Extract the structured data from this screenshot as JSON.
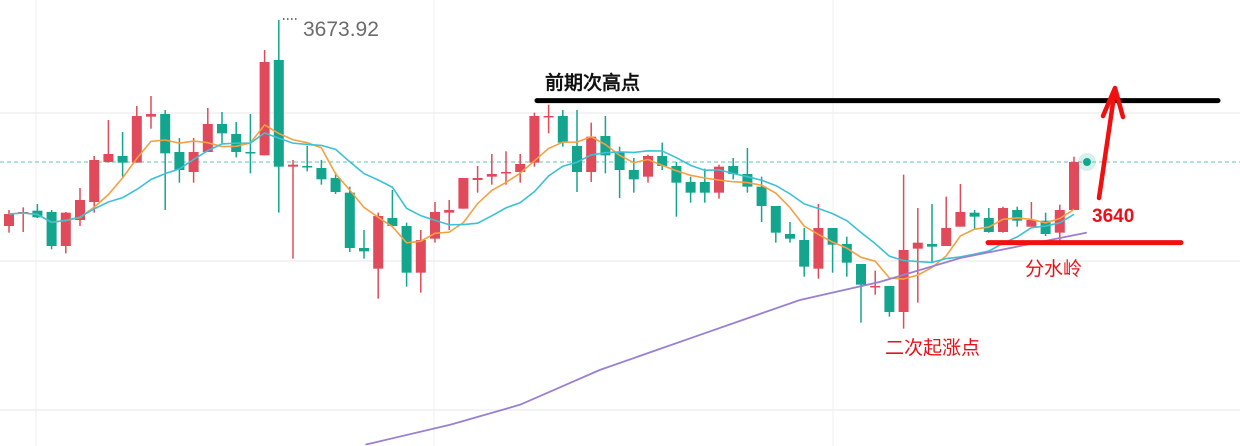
{
  "chart_data": {
    "type": "candlestick",
    "title": "",
    "xlabel": "",
    "ylabel": "",
    "ylim": [
      3610,
      3676.9
    ],
    "grid": true,
    "colors": {
      "up": "#e04a5a",
      "down": "#13a58e",
      "ma_short": "#f5a142",
      "ma_mid": "#3cc1d6",
      "ma_long": "#9b7fd4",
      "current_price_line": "#5cc7b4"
    },
    "ohlc": [
      [
        3643.0,
        3645.4,
        3642.0,
        3644.8
      ],
      [
        3645.0,
        3645.8,
        3642.1,
        3645.1
      ],
      [
        3645.3,
        3646.3,
        3644.2,
        3644.3
      ],
      [
        3645.1,
        3645.4,
        3639.5,
        3640.0
      ],
      [
        3640.0,
        3645.1,
        3638.9,
        3645.0
      ],
      [
        3643.9,
        3648.7,
        3643.0,
        3646.9
      ],
      [
        3646.6,
        3653.5,
        3645.0,
        3652.9
      ],
      [
        3652.6,
        3658.9,
        3652.5,
        3653.8
      ],
      [
        3653.5,
        3657.1,
        3650.4,
        3652.5
      ],
      [
        3652.5,
        3661.0,
        3652.5,
        3659.5
      ],
      [
        3659.4,
        3662.5,
        3657.6,
        3659.8
      ],
      [
        3659.8,
        3660.4,
        3645.4,
        3653.9
      ],
      [
        3654.1,
        3656.2,
        3649.5,
        3651.4
      ],
      [
        3651.1,
        3656.2,
        3649.5,
        3654.1
      ],
      [
        3654.1,
        3660.7,
        3654.1,
        3658.3
      ],
      [
        3658.3,
        3660.1,
        3655.4,
        3656.9
      ],
      [
        3656.8,
        3658.6,
        3653.3,
        3654.1
      ],
      [
        3654.1,
        3659.8,
        3650.9,
        3653.9
      ],
      [
        3653.6,
        3669.4,
        3653.6,
        3667.6
      ],
      [
        3667.9,
        3673.92,
        3645.0,
        3651.9
      ],
      [
        3651.9,
        3652.9,
        3638.1,
        3652.2
      ],
      [
        3652.0,
        3655.0,
        3651.2,
        3651.9
      ],
      [
        3651.7,
        3652.9,
        3649.2,
        3650.0
      ],
      [
        3650.2,
        3651.0,
        3647.8,
        3648.1
      ],
      [
        3648.0,
        3648.9,
        3639.1,
        3639.7
      ],
      [
        3639.7,
        3642.4,
        3638.1,
        3639.2
      ],
      [
        3636.6,
        3645.0,
        3632.1,
        3644.5
      ],
      [
        3644.2,
        3648.4,
        3642.9,
        3643.0
      ],
      [
        3643.0,
        3643.5,
        3633.9,
        3636.0
      ],
      [
        3636.0,
        3642.4,
        3633.0,
        3640.9
      ],
      [
        3641.1,
        3646.6,
        3640.5,
        3645.1
      ],
      [
        3645.0,
        3646.9,
        3642.4,
        3645.4
      ],
      [
        3645.6,
        3650.2,
        3645.6,
        3650.2
      ],
      [
        3649.9,
        3652.0,
        3648.0,
        3650.2
      ],
      [
        3650.4,
        3653.8,
        3649.2,
        3650.8
      ],
      [
        3651.0,
        3654.2,
        3649.2,
        3651.1
      ],
      [
        3651.1,
        3653.8,
        3649.5,
        3652.3
      ],
      [
        3652.5,
        3660.0,
        3651.9,
        3659.5
      ],
      [
        3659.4,
        3661.2,
        3656.9,
        3659.5
      ],
      [
        3659.5,
        3660.4,
        3654.9,
        3655.5
      ],
      [
        3655.0,
        3660.4,
        3648.1,
        3651.1
      ],
      [
        3651.1,
        3658.5,
        3649.6,
        3656.4
      ],
      [
        3656.5,
        3659.5,
        3650.9,
        3653.6
      ],
      [
        3654.1,
        3654.9,
        3647.2,
        3651.4
      ],
      [
        3651.4,
        3653.2,
        3648.0,
        3650.0
      ],
      [
        3650.4,
        3653.7,
        3649.5,
        3653.5
      ],
      [
        3653.5,
        3655.5,
        3651.4,
        3652.0
      ],
      [
        3652.0,
        3652.6,
        3644.4,
        3649.5
      ],
      [
        3649.6,
        3650.4,
        3646.5,
        3648.0
      ],
      [
        3649.6,
        3651.6,
        3646.5,
        3648.0
      ],
      [
        3648.0,
        3652.2,
        3647.1,
        3651.9
      ],
      [
        3652.0,
        3653.2,
        3650.0,
        3650.8
      ],
      [
        3650.8,
        3654.7,
        3648.0,
        3648.9
      ],
      [
        3648.9,
        3650.4,
        3643.6,
        3646.0
      ],
      [
        3646.0,
        3646.0,
        3640.5,
        3642.0
      ],
      [
        3641.8,
        3643.6,
        3640.5,
        3641.1
      ],
      [
        3640.9,
        3642.7,
        3635.4,
        3636.9
      ],
      [
        3636.6,
        3646.3,
        3635.1,
        3642.7
      ],
      [
        3642.7,
        3642.7,
        3636.0,
        3640.2
      ],
      [
        3640.3,
        3641.4,
        3635.4,
        3637.5
      ],
      [
        3637.3,
        3637.3,
        3628.5,
        3634.2
      ],
      [
        3633.9,
        3636.3,
        3632.7,
        3634.0
      ],
      [
        3634.0,
        3634.0,
        3629.4,
        3630.1
      ],
      [
        3630.1,
        3650.7,
        3627.6,
        3639.4
      ],
      [
        3639.6,
        3645.7,
        3631.5,
        3640.5
      ],
      [
        3640.3,
        3646.3,
        3637.5,
        3639.9
      ],
      [
        3640.0,
        3647.4,
        3640.0,
        3642.7
      ],
      [
        3642.9,
        3649.3,
        3642.9,
        3645.1
      ],
      [
        3645.0,
        3645.4,
        3642.6,
        3644.4
      ],
      [
        3644.2,
        3645.7,
        3642.0,
        3642.1
      ],
      [
        3642.1,
        3645.9,
        3642.0,
        3645.7
      ],
      [
        3645.4,
        3645.9,
        3642.9,
        3643.8
      ],
      [
        3642.9,
        3646.6,
        3642.9,
        3643.9
      ],
      [
        3643.8,
        3645.0,
        3641.5,
        3641.8
      ],
      [
        3642.0,
        3646.2,
        3640.5,
        3645.4
      ],
      [
        3645.4,
        3653.4,
        3645.4,
        3652.6
      ]
    ],
    "ma_long_points": [
      [
        25.1,
        3610.2
      ],
      [
        31.1,
        3613.2
      ],
      [
        36.0,
        3616.2
      ],
      [
        41.6,
        3621.4
      ],
      [
        48.7,
        3626.7
      ],
      [
        55.7,
        3631.9
      ],
      [
        61.3,
        3634.6
      ],
      [
        67.0,
        3638.2
      ],
      [
        75.9,
        3642.0
      ]
    ],
    "current_price": 3652.6,
    "high_label": "3673.92",
    "annotations": {
      "prev_high_label": "前期次高点",
      "prev_high_level": 3661.8,
      "watershed_price_label": "3640",
      "watershed_label": "分水岭",
      "watershed_level": 3640.5,
      "second_rise_label": "二次起涨点"
    }
  }
}
